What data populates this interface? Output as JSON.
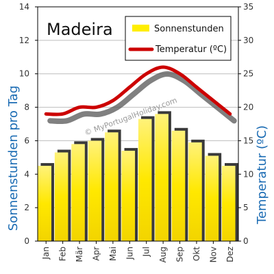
{
  "chart_data": {
    "type": "bar+line",
    "title": "Madeira",
    "watermark": "© MyPortugalHoliday.com",
    "categories": [
      "Jan",
      "Feb",
      "Mär",
      "Apr",
      "Mai",
      "Jun",
      "Jul",
      "Aug",
      "Sep",
      "Okt",
      "Nov",
      "Dez"
    ],
    "series": [
      {
        "name": "Sonnenstunden",
        "kind": "bar",
        "axis": "left",
        "color": "#ffee00",
        "values": [
          4.5,
          5.3,
          5.8,
          6.0,
          6.5,
          5.4,
          7.3,
          7.6,
          6.6,
          5.9,
          5.1,
          4.5
        ]
      },
      {
        "name": "Temperatur (ºC)",
        "kind": "line",
        "axis": "right",
        "color": "#cc0000",
        "values": [
          19,
          19,
          20,
          20,
          21,
          23,
          25,
          26,
          25,
          23,
          21,
          19
        ]
      }
    ],
    "ylabel": "Sonnenstunden pro Tag",
    "ylim": [
      0,
      14
    ],
    "yticks": [
      "0",
      "2",
      "4",
      "6",
      "8",
      "10",
      "12",
      "14"
    ],
    "y2label": "Temperatur (ºC)",
    "y2lim": [
      0,
      35
    ],
    "y2ticks": [
      "0",
      "5",
      "10",
      "15",
      "20",
      "25",
      "30",
      "35"
    ],
    "grid": true,
    "legend_position": "top-right"
  }
}
